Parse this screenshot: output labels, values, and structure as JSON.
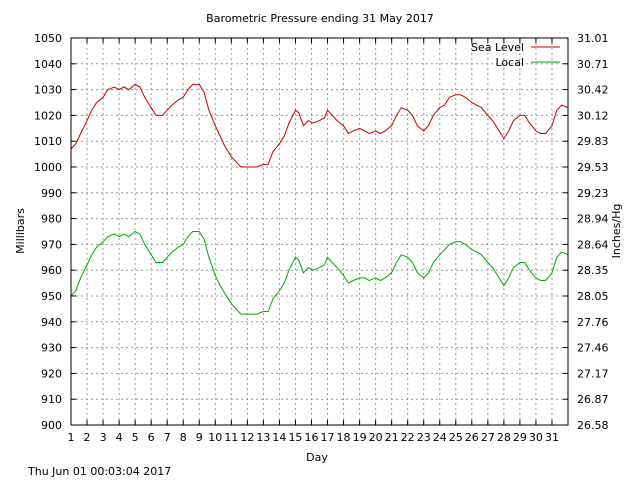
{
  "chart_data": {
    "type": "line",
    "title": "Barometric Pressure ending 31 May 2017",
    "xlabel": "Day",
    "ylabel": "Millibars",
    "y2label": "Inches/Hg",
    "footer": "Thu Jun 01 00:03:04 2017",
    "xlim": [
      1,
      32
    ],
    "ylim": [
      900,
      1050
    ],
    "grid": true,
    "legend_position": "top-right",
    "x_ticks": [
      "1",
      "2",
      "3",
      "4",
      "5",
      "6",
      "7",
      "8",
      "9",
      "10",
      "11",
      "12",
      "13",
      "14",
      "15",
      "16",
      "17",
      "18",
      "19",
      "20",
      "21",
      "22",
      "23",
      "24",
      "25",
      "26",
      "27",
      "28",
      "29",
      "30",
      "31"
    ],
    "y_ticks": [
      "900",
      "910",
      "920",
      "930",
      "940",
      "950",
      "960",
      "970",
      "980",
      "990",
      "1000",
      "1010",
      "1020",
      "1030",
      "1040",
      "1050"
    ],
    "y2_ticks": [
      "26.58",
      "26.87",
      "27.17",
      "27.46",
      "27.76",
      "28.05",
      "28.35",
      "28.64",
      "28.94",
      "29.23",
      "29.53",
      "29.83",
      "30.12",
      "30.42",
      "30.71",
      "31.01"
    ],
    "series": [
      {
        "name": "Sea Level",
        "color": "#cc0000",
        "points": [
          [
            1.0,
            1007
          ],
          [
            1.3,
            1009
          ],
          [
            1.6,
            1013
          ],
          [
            2.0,
            1018
          ],
          [
            2.3,
            1022
          ],
          [
            2.6,
            1025
          ],
          [
            3.0,
            1027
          ],
          [
            3.3,
            1030
          ],
          [
            3.7,
            1031
          ],
          [
            4.0,
            1030
          ],
          [
            4.3,
            1031
          ],
          [
            4.6,
            1030
          ],
          [
            4.8,
            1031
          ],
          [
            5.0,
            1032
          ],
          [
            5.3,
            1031
          ],
          [
            5.6,
            1027
          ],
          [
            6.0,
            1023
          ],
          [
            6.3,
            1020
          ],
          [
            6.7,
            1020
          ],
          [
            7.0,
            1022
          ],
          [
            7.3,
            1024
          ],
          [
            7.7,
            1026
          ],
          [
            8.0,
            1027
          ],
          [
            8.3,
            1030
          ],
          [
            8.6,
            1032
          ],
          [
            9.0,
            1032
          ],
          [
            9.3,
            1029
          ],
          [
            9.6,
            1022
          ],
          [
            10.0,
            1016
          ],
          [
            10.3,
            1012
          ],
          [
            10.6,
            1008
          ],
          [
            11.0,
            1004
          ],
          [
            11.3,
            1002
          ],
          [
            11.6,
            1000
          ],
          [
            12.0,
            1000
          ],
          [
            12.3,
            1000
          ],
          [
            12.6,
            1000
          ],
          [
            13.0,
            1001
          ],
          [
            13.3,
            1001
          ],
          [
            13.6,
            1006
          ],
          [
            14.0,
            1009
          ],
          [
            14.3,
            1012
          ],
          [
            14.6,
            1017
          ],
          [
            15.0,
            1022
          ],
          [
            15.2,
            1021
          ],
          [
            15.5,
            1016
          ],
          [
            15.8,
            1018
          ],
          [
            16.1,
            1017
          ],
          [
            16.5,
            1018
          ],
          [
            16.8,
            1019
          ],
          [
            17.0,
            1022
          ],
          [
            17.3,
            1020
          ],
          [
            17.6,
            1018
          ],
          [
            18.0,
            1016
          ],
          [
            18.3,
            1013
          ],
          [
            18.6,
            1014
          ],
          [
            19.0,
            1015
          ],
          [
            19.3,
            1014
          ],
          [
            19.6,
            1013
          ],
          [
            20.0,
            1014
          ],
          [
            20.3,
            1013
          ],
          [
            20.6,
            1014
          ],
          [
            21.0,
            1016
          ],
          [
            21.3,
            1020
          ],
          [
            21.6,
            1023
          ],
          [
            22.0,
            1022
          ],
          [
            22.3,
            1020
          ],
          [
            22.6,
            1016
          ],
          [
            23.0,
            1014
          ],
          [
            23.3,
            1016
          ],
          [
            23.6,
            1020
          ],
          [
            24.0,
            1023
          ],
          [
            24.3,
            1024
          ],
          [
            24.6,
            1027
          ],
          [
            25.0,
            1028
          ],
          [
            25.3,
            1028
          ],
          [
            25.6,
            1027
          ],
          [
            26.0,
            1025
          ],
          [
            26.3,
            1024
          ],
          [
            26.6,
            1023
          ],
          [
            27.0,
            1020
          ],
          [
            27.3,
            1018
          ],
          [
            27.6,
            1015
          ],
          [
            28.0,
            1011
          ],
          [
            28.3,
            1014
          ],
          [
            28.6,
            1018
          ],
          [
            29.0,
            1020
          ],
          [
            29.3,
            1020
          ],
          [
            29.6,
            1017
          ],
          [
            30.0,
            1014
          ],
          [
            30.3,
            1013
          ],
          [
            30.6,
            1013
          ],
          [
            31.0,
            1016
          ],
          [
            31.3,
            1022
          ],
          [
            31.6,
            1024
          ],
          [
            32.0,
            1023
          ]
        ]
      },
      {
        "name": "Local",
        "color": "#00aa00",
        "points": [
          [
            1.0,
            950
          ],
          [
            1.3,
            952
          ],
          [
            1.6,
            957
          ],
          [
            2.0,
            962
          ],
          [
            2.3,
            966
          ],
          [
            2.6,
            969
          ],
          [
            3.0,
            971
          ],
          [
            3.3,
            973
          ],
          [
            3.7,
            974
          ],
          [
            4.0,
            973
          ],
          [
            4.3,
            974
          ],
          [
            4.6,
            973
          ],
          [
            4.8,
            974
          ],
          [
            5.0,
            975
          ],
          [
            5.3,
            974
          ],
          [
            5.6,
            970
          ],
          [
            6.0,
            966
          ],
          [
            6.3,
            963
          ],
          [
            6.7,
            963
          ],
          [
            7.0,
            965
          ],
          [
            7.3,
            967
          ],
          [
            7.7,
            969
          ],
          [
            8.0,
            970
          ],
          [
            8.3,
            973
          ],
          [
            8.6,
            975
          ],
          [
            9.0,
            975
          ],
          [
            9.3,
            972
          ],
          [
            9.6,
            965
          ],
          [
            10.0,
            958
          ],
          [
            10.3,
            954
          ],
          [
            10.6,
            951
          ],
          [
            11.0,
            947
          ],
          [
            11.3,
            945
          ],
          [
            11.6,
            943
          ],
          [
            12.0,
            943
          ],
          [
            12.3,
            943
          ],
          [
            12.6,
            943
          ],
          [
            13.0,
            944
          ],
          [
            13.3,
            944
          ],
          [
            13.6,
            949
          ],
          [
            14.0,
            952
          ],
          [
            14.3,
            955
          ],
          [
            14.6,
            960
          ],
          [
            15.0,
            965
          ],
          [
            15.2,
            964
          ],
          [
            15.5,
            959
          ],
          [
            15.8,
            961
          ],
          [
            16.1,
            960
          ],
          [
            16.5,
            961
          ],
          [
            16.8,
            962
          ],
          [
            17.0,
            965
          ],
          [
            17.3,
            963
          ],
          [
            17.6,
            961
          ],
          [
            18.0,
            958
          ],
          [
            18.3,
            955
          ],
          [
            18.6,
            956
          ],
          [
            19.0,
            957
          ],
          [
            19.3,
            957
          ],
          [
            19.6,
            956
          ],
          [
            20.0,
            957
          ],
          [
            20.3,
            956
          ],
          [
            20.6,
            957
          ],
          [
            21.0,
            959
          ],
          [
            21.3,
            963
          ],
          [
            21.6,
            966
          ],
          [
            22.0,
            965
          ],
          [
            22.3,
            963
          ],
          [
            22.6,
            959
          ],
          [
            23.0,
            957
          ],
          [
            23.3,
            959
          ],
          [
            23.6,
            963
          ],
          [
            24.0,
            966
          ],
          [
            24.3,
            968
          ],
          [
            24.6,
            970
          ],
          [
            25.0,
            971
          ],
          [
            25.3,
            971
          ],
          [
            25.6,
            970
          ],
          [
            26.0,
            968
          ],
          [
            26.3,
            967
          ],
          [
            26.6,
            966
          ],
          [
            27.0,
            963
          ],
          [
            27.3,
            961
          ],
          [
            27.6,
            958
          ],
          [
            28.0,
            954
          ],
          [
            28.3,
            957
          ],
          [
            28.6,
            961
          ],
          [
            29.0,
            963
          ],
          [
            29.3,
            963
          ],
          [
            29.6,
            960
          ],
          [
            30.0,
            957
          ],
          [
            30.3,
            956
          ],
          [
            30.6,
            956
          ],
          [
            31.0,
            959
          ],
          [
            31.3,
            965
          ],
          [
            31.6,
            967
          ],
          [
            32.0,
            966
          ]
        ]
      }
    ]
  }
}
